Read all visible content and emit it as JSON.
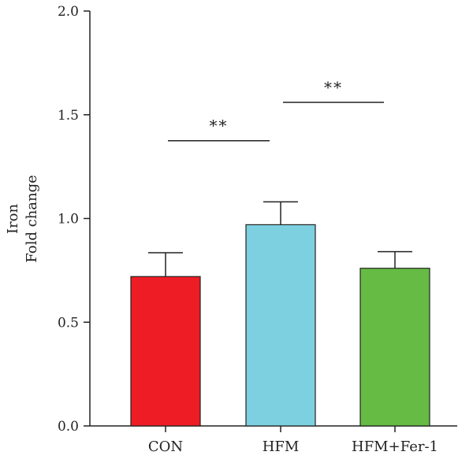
{
  "chart_data": {
    "type": "bar",
    "categories": [
      "CON",
      "HFM",
      "HFM+Fer-1"
    ],
    "values": [
      0.72,
      0.97,
      0.76
    ],
    "errors": [
      0.115,
      0.11,
      0.08
    ],
    "colors": [
      "#ee1c25",
      "#7dd0df",
      "#66bb44"
    ],
    "ylabel_lines": [
      "Iron",
      "Fold change"
    ],
    "ylim": [
      0.0,
      2.0
    ],
    "yticks": [
      0.0,
      0.5,
      1.0,
      1.5,
      2.0
    ],
    "ytick_labels": [
      "0.0",
      "0.5",
      "1.0",
      "1.5",
      "2.0"
    ],
    "grid": false,
    "annotations": [
      {
        "from": 0,
        "to": 1,
        "y": 1.375,
        "label": "**"
      },
      {
        "from": 1,
        "to": 2,
        "y": 1.56,
        "label": "**"
      }
    ]
  }
}
